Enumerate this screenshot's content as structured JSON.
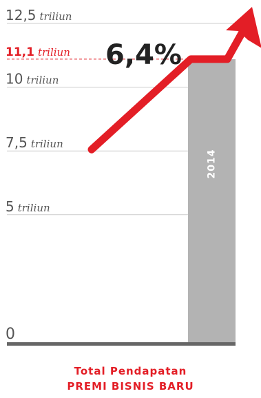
{
  "chart_data": {
    "type": "bar",
    "unit": "triliun",
    "categories": [
      "2014"
    ],
    "values": [
      11.1
    ],
    "ylim": [
      0,
      12.5
    ],
    "yticks": [
      {
        "value": 0,
        "number": "0",
        "unit": "",
        "highlight": false
      },
      {
        "value": 5,
        "number": "5",
        "unit": "triliun",
        "highlight": false
      },
      {
        "value": 7.5,
        "number": "7,5",
        "unit": "triliun",
        "highlight": false
      },
      {
        "value": 10,
        "number": "10",
        "unit": "triliun",
        "highlight": false
      },
      {
        "value": 11.1,
        "number": "11,1",
        "unit": "triliun",
        "highlight": true
      },
      {
        "value": 12.5,
        "number": "12,5",
        "unit": "triliun",
        "highlight": false
      }
    ],
    "growth_label": "6,4%",
    "arrow_start_value": 7.5,
    "colors": {
      "bar": "#b3b3b3",
      "accent": "#e31e26",
      "grid": "#cccccc",
      "baseline": "#666666"
    }
  },
  "caption": {
    "line1": "Total Pendapatan",
    "line2": "PREMI BISNIS BARU"
  }
}
